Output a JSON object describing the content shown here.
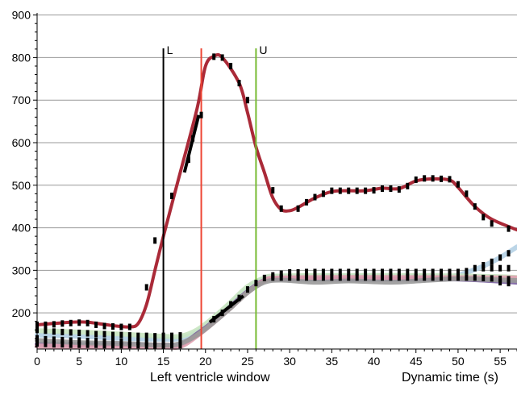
{
  "chart_data": {
    "type": "line",
    "xlabel": "Dynamic time (s)",
    "window_label": "Left ventricle window",
    "xlim": [
      0,
      57
    ],
    "ylim": [
      115,
      905
    ],
    "x_ticks": [
      0,
      5,
      10,
      15,
      20,
      25,
      30,
      35,
      40,
      45,
      50,
      55
    ],
    "y_ticks": [
      200,
      300,
      400,
      500,
      600,
      700,
      800,
      900
    ],
    "grid": "horizontal",
    "markers": [
      {
        "label": "L",
        "x": 15.0,
        "color": "#000000"
      },
      {
        "label": "",
        "x": 19.5,
        "color": "#ee4433"
      },
      {
        "label": "U",
        "x": 26.0,
        "color": "#77bb33"
      }
    ],
    "series": [
      {
        "color": "#aa2a38",
        "points": [
          [
            0,
            172
          ],
          [
            4,
            178
          ],
          [
            6,
            178
          ],
          [
            9,
            170
          ],
          [
            11,
            167
          ],
          [
            12,
            175
          ],
          [
            13,
            220
          ],
          [
            14,
            300
          ],
          [
            15,
            380
          ],
          [
            17,
            530
          ],
          [
            19,
            680
          ],
          [
            20,
            780
          ],
          [
            21,
            803
          ],
          [
            22,
            800
          ],
          [
            24,
            740
          ],
          [
            25,
            670
          ],
          [
            26,
            590
          ],
          [
            27,
            530
          ],
          [
            28,
            470
          ],
          [
            29,
            443
          ],
          [
            30,
            440
          ],
          [
            31,
            448
          ],
          [
            33,
            470
          ],
          [
            35,
            485
          ],
          [
            37,
            487
          ],
          [
            39,
            487
          ],
          [
            41,
            493
          ],
          [
            43,
            492
          ],
          [
            45,
            510
          ],
          [
            47,
            515
          ],
          [
            49,
            512
          ],
          [
            50,
            495
          ],
          [
            52,
            450
          ],
          [
            54,
            420
          ],
          [
            57,
            395
          ]
        ]
      },
      {
        "color": "#b4d0e4",
        "points": [
          [
            0,
            148
          ],
          [
            5,
            145
          ],
          [
            10,
            140
          ],
          [
            15,
            138
          ],
          [
            17,
            140
          ],
          [
            19,
            155
          ],
          [
            21,
            185
          ],
          [
            23,
            220
          ],
          [
            25,
            258
          ],
          [
            27,
            280
          ],
          [
            29,
            285
          ],
          [
            45,
            285
          ],
          [
            49,
            285
          ],
          [
            51,
            295
          ],
          [
            53,
            310
          ],
          [
            55,
            330
          ],
          [
            57,
            355
          ]
        ]
      },
      {
        "color": "#c8e4c0",
        "points": [
          [
            0,
            158
          ],
          [
            5,
            155
          ],
          [
            10,
            150
          ],
          [
            15,
            145
          ],
          [
            17,
            145
          ],
          [
            19,
            160
          ],
          [
            21,
            190
          ],
          [
            23,
            225
          ],
          [
            25,
            262
          ],
          [
            27,
            282
          ],
          [
            29,
            287
          ],
          [
            40,
            288
          ],
          [
            50,
            287
          ],
          [
            55,
            285
          ],
          [
            57,
            283
          ]
        ]
      },
      {
        "color": "#7a5fa0",
        "points": [
          [
            0,
            126
          ],
          [
            5,
            125
          ],
          [
            10,
            125
          ],
          [
            15,
            124
          ],
          [
            17,
            125
          ],
          [
            19,
            150
          ],
          [
            21,
            180
          ],
          [
            23,
            215
          ],
          [
            25,
            250
          ],
          [
            27,
            276
          ],
          [
            29,
            280
          ],
          [
            40,
            279
          ],
          [
            48,
            280
          ],
          [
            52,
            278
          ],
          [
            57,
            272
          ]
        ]
      },
      {
        "color": "#e0a0b0",
        "points": [
          [
            0,
            122
          ],
          [
            5,
            121
          ],
          [
            10,
            121
          ],
          [
            15,
            120
          ],
          [
            17,
            121
          ],
          [
            19,
            146
          ],
          [
            21,
            178
          ],
          [
            23,
            212
          ],
          [
            25,
            248
          ],
          [
            27,
            275
          ],
          [
            29,
            282
          ],
          [
            40,
            283
          ],
          [
            57,
            282
          ]
        ]
      },
      {
        "color": "#999999",
        "points": [
          [
            0,
            135
          ],
          [
            5,
            130
          ],
          [
            10,
            128
          ],
          [
            15,
            124
          ],
          [
            17,
            128
          ],
          [
            19,
            148
          ],
          [
            21,
            178
          ],
          [
            23,
            212
          ],
          [
            25,
            248
          ],
          [
            27,
            272
          ],
          [
            29,
            277
          ],
          [
            33,
            272
          ],
          [
            37,
            275
          ],
          [
            42,
            272
          ],
          [
            46,
            276
          ],
          [
            50,
            280
          ],
          [
            54,
            278
          ],
          [
            57,
            276
          ]
        ]
      }
    ],
    "point_markers": [
      [
        0,
        172
      ],
      [
        1,
        172
      ],
      [
        2,
        173
      ],
      [
        3,
        175
      ],
      [
        4,
        176
      ],
      [
        5,
        177
      ],
      [
        6,
        176
      ],
      [
        7,
        172
      ],
      [
        8,
        169
      ],
      [
        9,
        168
      ],
      [
        10,
        167
      ],
      [
        11,
        167
      ],
      [
        13,
        260
      ],
      [
        14,
        370
      ],
      [
        16,
        475
      ],
      [
        18,
        560
      ],
      [
        18.5,
        610
      ],
      [
        19.5,
        665
      ],
      [
        21,
        802
      ],
      [
        22,
        800
      ],
      [
        23,
        780
      ],
      [
        24,
        740
      ],
      [
        25,
        700
      ],
      [
        28,
        488
      ],
      [
        29,
        445
      ],
      [
        31,
        445
      ],
      [
        32,
        460
      ],
      [
        33,
        472
      ],
      [
        34,
        480
      ],
      [
        35,
        487
      ],
      [
        36,
        487
      ],
      [
        37,
        487
      ],
      [
        38,
        487
      ],
      [
        39,
        487
      ],
      [
        40,
        488
      ],
      [
        41,
        492
      ],
      [
        42,
        492
      ],
      [
        43,
        490
      ],
      [
        44,
        498
      ],
      [
        45,
        513
      ],
      [
        46,
        516
      ],
      [
        47,
        516
      ],
      [
        48,
        515
      ],
      [
        49,
        514
      ],
      [
        50,
        502
      ],
      [
        51,
        480
      ],
      [
        52,
        450
      ],
      [
        53,
        425
      ],
      [
        54,
        410
      ],
      [
        56,
        398
      ],
      [
        0,
        160
      ],
      [
        1,
        158
      ],
      [
        2,
        156
      ],
      [
        3,
        155
      ],
      [
        4,
        154
      ],
      [
        5,
        153
      ],
      [
        6,
        152
      ],
      [
        7,
        150
      ],
      [
        8,
        150
      ],
      [
        9,
        148
      ],
      [
        10,
        148
      ],
      [
        11,
        147
      ],
      [
        12,
        146
      ],
      [
        13,
        146
      ],
      [
        14,
        145
      ],
      [
        15,
        146
      ],
      [
        16,
        146
      ],
      [
        17,
        147
      ],
      [
        0,
        140
      ],
      [
        1,
        138
      ],
      [
        2,
        137
      ],
      [
        3,
        136
      ],
      [
        4,
        135
      ],
      [
        5,
        135
      ],
      [
        6,
        134
      ],
      [
        7,
        134
      ],
      [
        8,
        133
      ],
      [
        9,
        133
      ],
      [
        10,
        132
      ],
      [
        11,
        132
      ],
      [
        12,
        132
      ],
      [
        13,
        131
      ],
      [
        14,
        131
      ],
      [
        15,
        132
      ],
      [
        16,
        132
      ],
      [
        17,
        133
      ],
      [
        0,
        128
      ],
      [
        1,
        127
      ],
      [
        2,
        126
      ],
      [
        3,
        126
      ],
      [
        4,
        125
      ],
      [
        5,
        125
      ],
      [
        6,
        125
      ],
      [
        7,
        125
      ],
      [
        8,
        124
      ],
      [
        9,
        124
      ],
      [
        10,
        124
      ],
      [
        11,
        124
      ],
      [
        12,
        124
      ],
      [
        13,
        123
      ],
      [
        14,
        123
      ],
      [
        15,
        123
      ],
      [
        16,
        124
      ],
      [
        17,
        124
      ],
      [
        21,
        185
      ],
      [
        22,
        200
      ],
      [
        23,
        220
      ],
      [
        24,
        235
      ],
      [
        25,
        255
      ],
      [
        26,
        270
      ],
      [
        27,
        282
      ],
      [
        28,
        288
      ],
      [
        29,
        292
      ],
      [
        30,
        295
      ],
      [
        31,
        295
      ],
      [
        32,
        296
      ],
      [
        33,
        296
      ],
      [
        34,
        296
      ],
      [
        35,
        296
      ],
      [
        36,
        296
      ],
      [
        37,
        296
      ],
      [
        38,
        296
      ],
      [
        39,
        296
      ],
      [
        40,
        296
      ],
      [
        41,
        296
      ],
      [
        42,
        296
      ],
      [
        43,
        296
      ],
      [
        44,
        296
      ],
      [
        45,
        296
      ],
      [
        46,
        296
      ],
      [
        47,
        296
      ],
      [
        48,
        296
      ],
      [
        49,
        296
      ],
      [
        50,
        296
      ],
      [
        51,
        298
      ],
      [
        52,
        305
      ],
      [
        53,
        312
      ],
      [
        54,
        320
      ],
      [
        55,
        330
      ],
      [
        56,
        340
      ],
      [
        28,
        283
      ],
      [
        29,
        283
      ],
      [
        30,
        283
      ],
      [
        31,
        283
      ],
      [
        32,
        283
      ],
      [
        33,
        283
      ],
      [
        34,
        283
      ],
      [
        35,
        283
      ],
      [
        36,
        283
      ],
      [
        37,
        283
      ],
      [
        38,
        283
      ],
      [
        39,
        283
      ],
      [
        40,
        283
      ],
      [
        41,
        283
      ],
      [
        42,
        283
      ],
      [
        43,
        283
      ],
      [
        44,
        283
      ],
      [
        45,
        283
      ],
      [
        46,
        283
      ],
      [
        47,
        283
      ],
      [
        48,
        283
      ],
      [
        49,
        283
      ],
      [
        50,
        283
      ],
      [
        51,
        283
      ],
      [
        52,
        283
      ],
      [
        53,
        282
      ],
      [
        54,
        281
      ],
      [
        55,
        280
      ],
      [
        56,
        279
      ],
      [
        53,
        305
      ],
      [
        54,
        305
      ],
      [
        55,
        305
      ],
      [
        56,
        305
      ],
      [
        55,
        272
      ],
      [
        56,
        270
      ]
    ],
    "highlight_segments": [
      [
        [
          17.5,
          530
        ],
        [
          19.2,
          665
        ]
      ],
      [
        [
          20.5,
          178
        ],
        [
          24.5,
          240
        ]
      ]
    ]
  }
}
